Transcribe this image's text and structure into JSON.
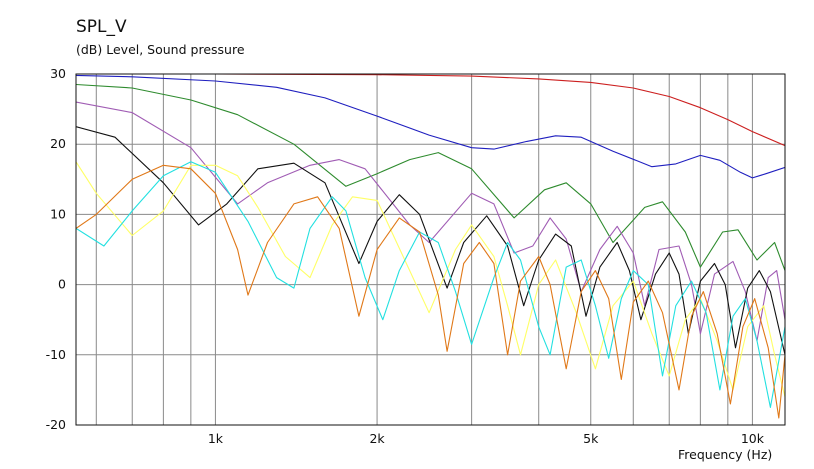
{
  "chart_data": {
    "type": "line",
    "title": "SPL_V",
    "subtitle": "(dB)  Level, Sound pressure",
    "xlabel": "Frequency  (Hz)",
    "x_scale": "log",
    "xlim": [
      550,
      11500
    ],
    "ylim": [
      -20,
      30
    ],
    "y_ticks": [
      30,
      20,
      10,
      0,
      -10,
      -20
    ],
    "y_tick_labels": [
      "30",
      "20",
      "10",
      "0",
      "-10",
      "-20"
    ],
    "x_ticks": [
      1000,
      2000,
      5000,
      10000
    ],
    "x_tick_labels": [
      "1k",
      "2k",
      "5k",
      "10k"
    ],
    "grid": true,
    "legend": "none",
    "series": [
      {
        "color": "#cc1f1f",
        "points": [
          [
            550,
            30.0
          ],
          [
            1000,
            30.0
          ],
          [
            2000,
            29.9
          ],
          [
            3000,
            29.7
          ],
          [
            4000,
            29.3
          ],
          [
            5000,
            28.8
          ],
          [
            6000,
            28.0
          ],
          [
            7000,
            26.8
          ],
          [
            8000,
            25.2
          ],
          [
            9000,
            23.5
          ],
          [
            10000,
            21.8
          ],
          [
            11500,
            19.8
          ]
        ]
      },
      {
        "color": "#1f1fbf",
        "points": [
          [
            550,
            29.8
          ],
          [
            700,
            29.6
          ],
          [
            1000,
            29.0
          ],
          [
            1300,
            28.1
          ],
          [
            1600,
            26.6
          ],
          [
            2000,
            24.0
          ],
          [
            2500,
            21.3
          ],
          [
            3000,
            19.5
          ],
          [
            3300,
            19.3
          ],
          [
            3800,
            20.4
          ],
          [
            4300,
            21.2
          ],
          [
            4800,
            21.0
          ],
          [
            5500,
            19.0
          ],
          [
            6500,
            16.8
          ],
          [
            7200,
            17.2
          ],
          [
            8000,
            18.4
          ],
          [
            8700,
            17.7
          ],
          [
            9500,
            16.0
          ],
          [
            10000,
            15.2
          ],
          [
            10600,
            15.8
          ],
          [
            11500,
            16.7
          ]
        ]
      },
      {
        "color": "#2e8b2e",
        "points": [
          [
            550,
            28.5
          ],
          [
            700,
            28.0
          ],
          [
            900,
            26.3
          ],
          [
            1100,
            24.2
          ],
          [
            1400,
            20.0
          ],
          [
            1750,
            14.0
          ],
          [
            2000,
            15.8
          ],
          [
            2300,
            17.8
          ],
          [
            2600,
            18.8
          ],
          [
            3000,
            16.5
          ],
          [
            3600,
            9.5
          ],
          [
            4100,
            13.5
          ],
          [
            4500,
            14.5
          ],
          [
            5000,
            11.5
          ],
          [
            5500,
            6.0
          ],
          [
            6300,
            11.0
          ],
          [
            6800,
            11.8
          ],
          [
            7500,
            7.5
          ],
          [
            8000,
            2.5
          ],
          [
            8800,
            7.5
          ],
          [
            9400,
            7.8
          ],
          [
            10200,
            3.5
          ],
          [
            11000,
            6.0
          ],
          [
            11500,
            2.0
          ]
        ]
      },
      {
        "color": "#a05cb4",
        "points": [
          [
            550,
            26.0
          ],
          [
            700,
            24.5
          ],
          [
            900,
            19.5
          ],
          [
            1100,
            11.5
          ],
          [
            1250,
            14.5
          ],
          [
            1500,
            17.0
          ],
          [
            1700,
            17.8
          ],
          [
            1900,
            16.5
          ],
          [
            2300,
            8.5
          ],
          [
            2500,
            6.0
          ],
          [
            3000,
            13.0
          ],
          [
            3300,
            11.5
          ],
          [
            3600,
            4.5
          ],
          [
            3900,
            5.5
          ],
          [
            4200,
            9.5
          ],
          [
            4500,
            6.5
          ],
          [
            4800,
            -1.0
          ],
          [
            5200,
            5.0
          ],
          [
            5600,
            8.3
          ],
          [
            6000,
            4.5
          ],
          [
            6300,
            -3.0
          ],
          [
            6700,
            5.0
          ],
          [
            7300,
            5.5
          ],
          [
            7700,
            0.0
          ],
          [
            8000,
            -7.0
          ],
          [
            8500,
            1.5
          ],
          [
            9200,
            3.3
          ],
          [
            9700,
            -1.0
          ],
          [
            10200,
            -8.0
          ],
          [
            10700,
            1.0
          ],
          [
            11100,
            2.0
          ],
          [
            11500,
            -5.0
          ]
        ]
      },
      {
        "color": "#111111",
        "points": [
          [
            550,
            22.5
          ],
          [
            650,
            21.0
          ],
          [
            800,
            14.5
          ],
          [
            930,
            8.5
          ],
          [
            1050,
            11.5
          ],
          [
            1200,
            16.5
          ],
          [
            1400,
            17.3
          ],
          [
            1600,
            14.5
          ],
          [
            1850,
            3.0
          ],
          [
            2000,
            9.0
          ],
          [
            2200,
            12.8
          ],
          [
            2400,
            10.0
          ],
          [
            2700,
            -0.5
          ],
          [
            2900,
            6.0
          ],
          [
            3200,
            9.8
          ],
          [
            3500,
            5.5
          ],
          [
            3750,
            -3.0
          ],
          [
            4000,
            3.5
          ],
          [
            4300,
            7.2
          ],
          [
            4600,
            5.5
          ],
          [
            4900,
            -4.5
          ],
          [
            5200,
            2.5
          ],
          [
            5600,
            6.0
          ],
          [
            5900,
            2.0
          ],
          [
            6200,
            -5.0
          ],
          [
            6600,
            1.5
          ],
          [
            7000,
            4.5
          ],
          [
            7300,
            1.5
          ],
          [
            7600,
            -7.0
          ],
          [
            8000,
            0.5
          ],
          [
            8500,
            3.0
          ],
          [
            8900,
            0.0
          ],
          [
            9300,
            -9.0
          ],
          [
            9800,
            -0.5
          ],
          [
            10300,
            2.0
          ],
          [
            10800,
            -1.0
          ],
          [
            11500,
            -10.0
          ]
        ]
      },
      {
        "color": "#ffff66",
        "points": [
          [
            550,
            17.5
          ],
          [
            600,
            13.0
          ],
          [
            700,
            7.0
          ],
          [
            800,
            10.5
          ],
          [
            900,
            17.0
          ],
          [
            1000,
            17.0
          ],
          [
            1100,
            15.5
          ],
          [
            1200,
            11.0
          ],
          [
            1350,
            4.0
          ],
          [
            1500,
            1.0
          ],
          [
            1650,
            8.5
          ],
          [
            1800,
            12.5
          ],
          [
            2000,
            12.0
          ],
          [
            2300,
            2.0
          ],
          [
            2500,
            -4.0
          ],
          [
            2800,
            5.0
          ],
          [
            3000,
            8.5
          ],
          [
            3300,
            4.0
          ],
          [
            3500,
            -3.0
          ],
          [
            3700,
            -10.0
          ],
          [
            4000,
            0.0
          ],
          [
            4300,
            3.5
          ],
          [
            4700,
            -4.0
          ],
          [
            5100,
            -12.0
          ],
          [
            5500,
            -3.0
          ],
          [
            6000,
            0.5
          ],
          [
            6500,
            -7.0
          ],
          [
            7000,
            -13.0
          ],
          [
            7500,
            -5.0
          ],
          [
            8000,
            -2.0
          ],
          [
            8600,
            -8.0
          ],
          [
            9200,
            -15.0
          ],
          [
            9800,
            -6.0
          ],
          [
            10500,
            -3.0
          ],
          [
            11000,
            -10.0
          ],
          [
            11500,
            -16.0
          ]
        ]
      },
      {
        "color": "#22e0e0",
        "points": [
          [
            550,
            8.0
          ],
          [
            620,
            5.5
          ],
          [
            700,
            10.5
          ],
          [
            800,
            15.5
          ],
          [
            900,
            17.5
          ],
          [
            1000,
            16.0
          ],
          [
            1150,
            9.0
          ],
          [
            1300,
            1.0
          ],
          [
            1400,
            -0.5
          ],
          [
            1500,
            8.0
          ],
          [
            1650,
            12.5
          ],
          [
            1750,
            10.5
          ],
          [
            1900,
            1.0
          ],
          [
            2050,
            -5.0
          ],
          [
            2200,
            2.0
          ],
          [
            2400,
            7.5
          ],
          [
            2600,
            6.0
          ],
          [
            2800,
            -1.0
          ],
          [
            3000,
            -8.5
          ],
          [
            3300,
            1.0
          ],
          [
            3500,
            6.0
          ],
          [
            3700,
            3.5
          ],
          [
            4000,
            -6.0
          ],
          [
            4200,
            -10.0
          ],
          [
            4500,
            2.5
          ],
          [
            4800,
            3.5
          ],
          [
            5100,
            -3.0
          ],
          [
            5400,
            -10.5
          ],
          [
            5700,
            -2.0
          ],
          [
            6000,
            2.0
          ],
          [
            6400,
            0.0
          ],
          [
            6800,
            -13.0
          ],
          [
            7200,
            -3.0
          ],
          [
            7700,
            0.5
          ],
          [
            8200,
            -4.0
          ],
          [
            8700,
            -15.0
          ],
          [
            9200,
            -4.5
          ],
          [
            9700,
            -2.0
          ],
          [
            10200,
            -8.0
          ],
          [
            10800,
            -17.5
          ],
          [
            11500,
            -6.0
          ]
        ]
      },
      {
        "color": "#e07818",
        "points": [
          [
            550,
            8.0
          ],
          [
            600,
            10.0
          ],
          [
            700,
            15.0
          ],
          [
            800,
            17.0
          ],
          [
            900,
            16.5
          ],
          [
            1000,
            13.0
          ],
          [
            1100,
            5.0
          ],
          [
            1150,
            -1.5
          ],
          [
            1250,
            6.0
          ],
          [
            1400,
            11.5
          ],
          [
            1550,
            12.5
          ],
          [
            1700,
            8.0
          ],
          [
            1850,
            -4.5
          ],
          [
            2000,
            5.0
          ],
          [
            2200,
            9.5
          ],
          [
            2400,
            7.5
          ],
          [
            2600,
            -1.5
          ],
          [
            2700,
            -9.5
          ],
          [
            2900,
            3.0
          ],
          [
            3100,
            6.0
          ],
          [
            3300,
            3.0
          ],
          [
            3500,
            -10.0
          ],
          [
            3700,
            0.5
          ],
          [
            4000,
            4.0
          ],
          [
            4200,
            0.0
          ],
          [
            4500,
            -12.0
          ],
          [
            4800,
            -1.0
          ],
          [
            5100,
            2.0
          ],
          [
            5400,
            -2.0
          ],
          [
            5700,
            -13.5
          ],
          [
            6000,
            -2.5
          ],
          [
            6400,
            0.5
          ],
          [
            6800,
            -4.0
          ],
          [
            7300,
            -15.0
          ],
          [
            7700,
            -4.5
          ],
          [
            8100,
            -1.0
          ],
          [
            8600,
            -7.0
          ],
          [
            9100,
            -17.0
          ],
          [
            9600,
            -6.0
          ],
          [
            10100,
            -2.0
          ],
          [
            10700,
            -9.0
          ],
          [
            11200,
            -19.0
          ],
          [
            11500,
            -10.0
          ]
        ]
      }
    ]
  }
}
